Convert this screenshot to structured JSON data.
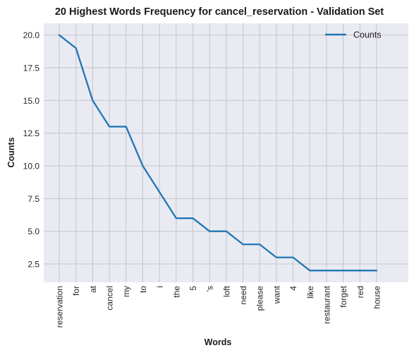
{
  "chart_data": {
    "type": "line",
    "title": "20 Highest Words Frequency for cancel_reservation - Validation Set",
    "xlabel": "Words",
    "ylabel": "Counts",
    "categories": [
      "reservation",
      "for",
      "at",
      "cancel",
      "my",
      "to",
      "i",
      "the",
      "5",
      "'s",
      "loft",
      "need",
      "please",
      "want",
      "4",
      "like",
      "restaurant",
      "forget",
      "red",
      "house"
    ],
    "series": [
      {
        "name": "Counts",
        "values": [
          20,
          19,
          15,
          13,
          13,
          10,
          8,
          6,
          6,
          5,
          5,
          4,
          4,
          3,
          3,
          2,
          2,
          2,
          2,
          2
        ],
        "color": "#1f77b4"
      }
    ],
    "ylim": [
      1.1,
      20.9
    ],
    "yticks": [
      2.5,
      5.0,
      7.5,
      10.0,
      12.5,
      15.0,
      17.5,
      20.0
    ],
    "ytick_labels": [
      "2.5",
      "5.0",
      "7.5",
      "10.0",
      "12.5",
      "15.0",
      "17.5",
      "20.0"
    ],
    "grid": true,
    "legend_position": "top-right",
    "background_color": "#eaeaf2",
    "grid_color": "#c4c4cc"
  }
}
